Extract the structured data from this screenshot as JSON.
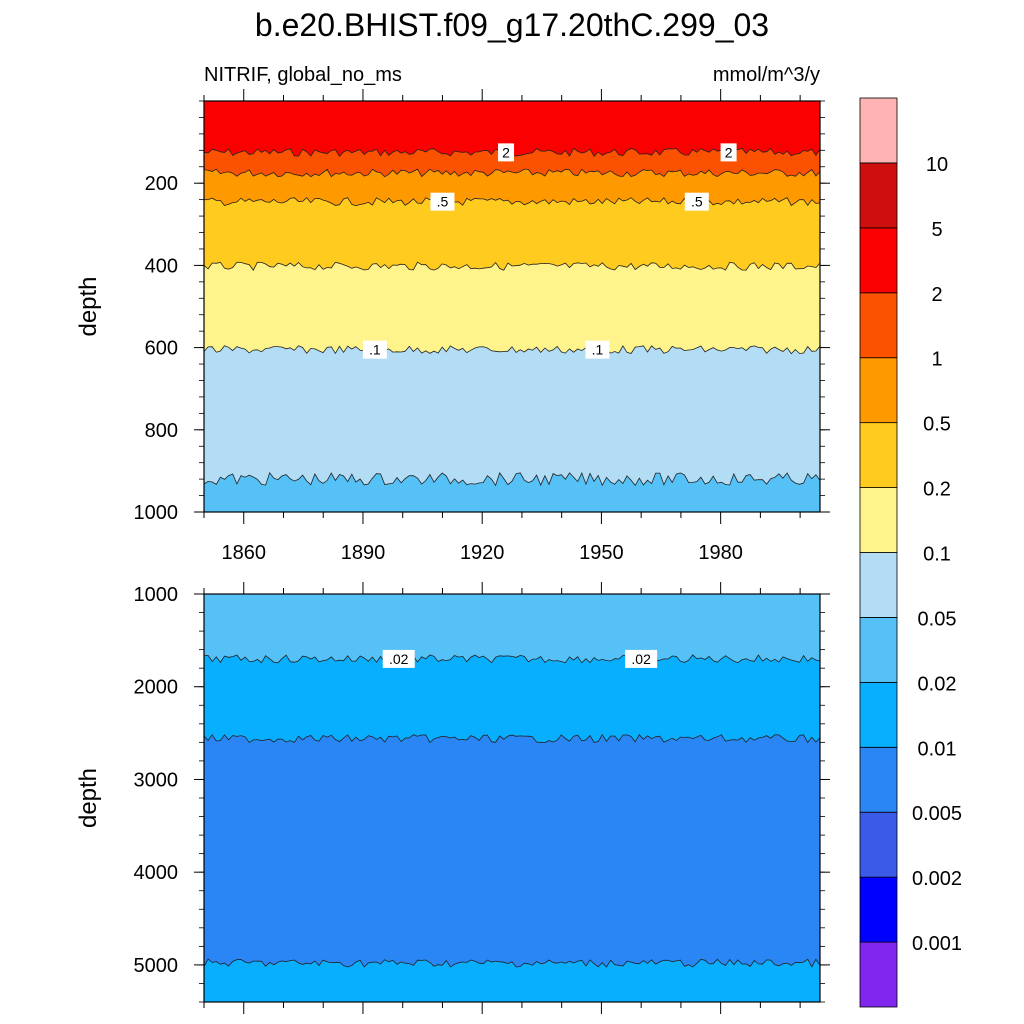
{
  "title": "b.e20.BHIST.f09_g17.20thC.299_03",
  "subtitle_left": "NITRIF, global_no_ms",
  "subtitle_right": "mmol/m^3/y",
  "chart_data": [
    {
      "type": "heatmap",
      "panel": "upper",
      "ylabel": "depth",
      "xlabel": "",
      "xlim": [
        1850,
        2005
      ],
      "ylim": [
        1000,
        0
      ],
      "x_ticks": [
        "1860",
        "1890",
        "1920",
        "1950",
        "1980"
      ],
      "x_tick_values": [
        1860,
        1890,
        1920,
        1950,
        1980
      ],
      "y_ticks": [
        "200",
        "400",
        "600",
        "800",
        "1000"
      ],
      "y_tick_values": [
        200,
        400,
        600,
        800,
        1000
      ],
      "contour_levels": [
        {
          "level": 2,
          "depth": 125,
          "color": "#FA5200"
        },
        {
          "level": 1,
          "depth": 175,
          "color": "#FF9900"
        },
        {
          "level": 0.5,
          "depth": 245,
          "color": "#FFCB1E"
        },
        {
          "level": 0.2,
          "depth": 402,
          "color": "#FFF48C"
        },
        {
          "level": 0.1,
          "depth": 605,
          "color": "#B2DDF5"
        },
        {
          "level": 0.05,
          "depth": 920,
          "color": "#55C1F6"
        }
      ],
      "top_color": "#FA0000",
      "contour_labels": [
        {
          "text": "2",
          "x": 1926,
          "depth": 125
        },
        {
          "text": "2",
          "x": 1982,
          "depth": 125
        },
        {
          "text": ".5",
          "x": 1910,
          "depth": 245
        },
        {
          "text": ".5",
          "x": 1974,
          "depth": 245
        },
        {
          "text": ".1",
          "x": 1893,
          "depth": 605
        },
        {
          "text": ".1",
          "x": 1949,
          "depth": 605
        }
      ]
    },
    {
      "type": "heatmap",
      "panel": "lower",
      "ylabel": "depth",
      "xlabel": "",
      "xlim": [
        1850,
        2005
      ],
      "ylim": [
        5400,
        1000
      ],
      "y_ticks": [
        "1000",
        "2000",
        "3000",
        "4000",
        "5000"
      ],
      "y_tick_values": [
        1000,
        2000,
        3000,
        4000,
        5000
      ],
      "contour_levels": [
        {
          "level": 0.02,
          "depth": 1700,
          "color": "#09AFFF"
        },
        {
          "level": 0.01,
          "depth": 2560,
          "color": "#2986F4"
        },
        {
          "level": 0.005,
          "depth": 4980,
          "color": "#09AFFF"
        }
      ],
      "top_color": "#55C1F6",
      "contour_labels": [
        {
          "text": ".02",
          "x": 1899,
          "depth": 1700
        },
        {
          "text": ".02",
          "x": 1960,
          "depth": 1700
        }
      ]
    }
  ],
  "colorbar": {
    "colors": [
      "#8026EF",
      "#0000FF",
      "#3A5BE7",
      "#2986F4",
      "#09AFFF",
      "#55C1F6",
      "#B2DDF5",
      "#FFF48C",
      "#FFCB1E",
      "#FF9900",
      "#FA5200",
      "#FA0000",
      "#CF0E0E",
      "#FFB3B3"
    ],
    "labels": [
      "0.001",
      "0.002",
      "0.005",
      "0.01",
      "0.02",
      "0.05",
      "0.1",
      "0.2",
      "0.5",
      "1",
      "2",
      "5",
      "10"
    ]
  }
}
